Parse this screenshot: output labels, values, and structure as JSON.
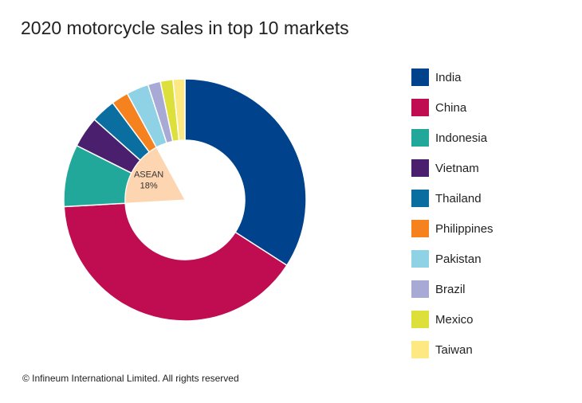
{
  "header": {
    "title": "2020 motorcycle sales in top 10 markets"
  },
  "footer": {
    "copyright": "© Infineum International Limited. All rights reserved"
  },
  "chart_data": {
    "type": "pie",
    "variant": "donut",
    "title": "2020 motorcycle sales in top 10 markets",
    "unit": "% share",
    "legend_position": "right",
    "categories": [
      "India",
      "China",
      "Indonesia",
      "Vietnam",
      "Thailand",
      "Philippines",
      "Pakistan",
      "Brazil",
      "Mexico",
      "Taiwan"
    ],
    "values": [
      34.5,
      40.5,
      8.4,
      4.2,
      3.3,
      2.3,
      3.0,
      1.7,
      1.7,
      1.6
    ],
    "colors": [
      "#00428c",
      "#c00c50",
      "#21a89a",
      "#4a1f6e",
      "#0a6fa0",
      "#f5821e",
      "#8fd2e6",
      "#a8a9d5",
      "#dde03a",
      "#fde882"
    ],
    "inner_pie": {
      "label": "ASEAN",
      "value": 18,
      "value_label": "18%",
      "color": "#fdd5b1",
      "members": [
        "Indonesia",
        "Vietnam",
        "Thailand",
        "Philippines"
      ]
    }
  }
}
